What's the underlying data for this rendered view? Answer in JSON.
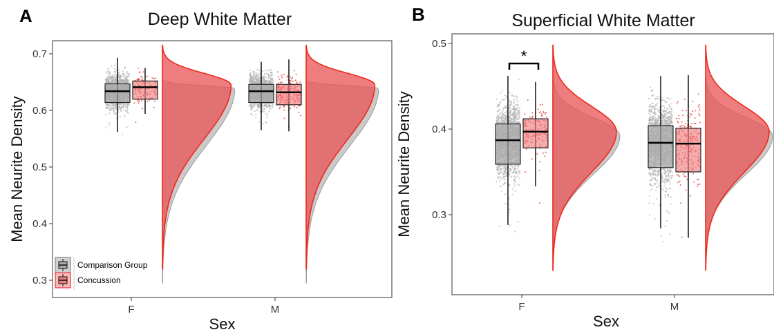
{
  "chart_data": [
    {
      "panel_label": "A",
      "type": "raincloud",
      "title": "Deep White Matter",
      "xlabel": "Sex",
      "ylabel": "Mean Neurite Density",
      "categories": [
        "F",
        "M"
      ],
      "ylim": [
        0.285,
        0.725
      ],
      "yticks": [
        "0.3",
        "0.4",
        "0.5",
        "0.6",
        "0.7"
      ],
      "grid": false,
      "legend_placement": "bottom-left",
      "series": [
        {
          "name": "Comparison Group",
          "color": "#a9a9a9",
          "box": [
            {
              "category": "F",
              "whisker_low": 0.562,
              "q1": 0.614,
              "median": 0.634,
              "q3": 0.647,
              "whisker_high": 0.693
            },
            {
              "category": "M",
              "whisker_low": 0.565,
              "q1": 0.614,
              "median": 0.634,
              "q3": 0.646,
              "whisker_high": 0.686
            }
          ],
          "density_peak": 0.639,
          "density_range": [
            0.295,
            0.655
          ]
        },
        {
          "name": "Concussion",
          "color": "#f08080",
          "box": [
            {
              "category": "F",
              "whisker_low": 0.594,
              "q1": 0.62,
              "median": 0.641,
              "q3": 0.652,
              "whisker_high": 0.675
            },
            {
              "category": "M",
              "whisker_low": 0.563,
              "q1": 0.61,
              "median": 0.632,
              "q3": 0.646,
              "whisker_high": 0.69
            }
          ],
          "density_peak": 0.645,
          "density_range": [
            0.32,
            0.715
          ]
        }
      ],
      "annotations": []
    },
    {
      "panel_label": "B",
      "type": "raincloud",
      "title": "Superficial White Matter",
      "xlabel": "Sex",
      "ylabel": "Mean Neurite Density",
      "categories": [
        "F",
        "M"
      ],
      "ylim": [
        0.225,
        0.505
      ],
      "yticks": [
        "0.3",
        "0.4",
        "0.5"
      ],
      "grid": false,
      "series": [
        {
          "name": "Comparison Group",
          "color": "#a9a9a9",
          "box": [
            {
              "category": "F",
              "whisker_low": 0.288,
              "q1": 0.359,
              "median": 0.387,
              "q3": 0.406,
              "whisker_high": 0.462
            },
            {
              "category": "M",
              "whisker_low": 0.284,
              "q1": 0.355,
              "median": 0.384,
              "q3": 0.404,
              "whisker_high": 0.462
            }
          ],
          "density_peak": 0.392,
          "density_range": [
            0.24,
            0.465
          ]
        },
        {
          "name": "Concussion",
          "color": "#f08080",
          "box": [
            {
              "category": "F",
              "whisker_low": 0.333,
              "q1": 0.378,
              "median": 0.397,
              "q3": 0.412,
              "whisker_high": 0.455
            },
            {
              "category": "M",
              "whisker_low": 0.273,
              "q1": 0.35,
              "median": 0.383,
              "q3": 0.401,
              "whisker_high": 0.463
            }
          ],
          "density_peak": 0.397,
          "density_range": [
            0.235,
            0.498
          ]
        }
      ],
      "annotations": [
        {
          "text": "*",
          "between": [
            "Comparison Group",
            "Concussion"
          ],
          "category": "F"
        }
      ]
    }
  ]
}
